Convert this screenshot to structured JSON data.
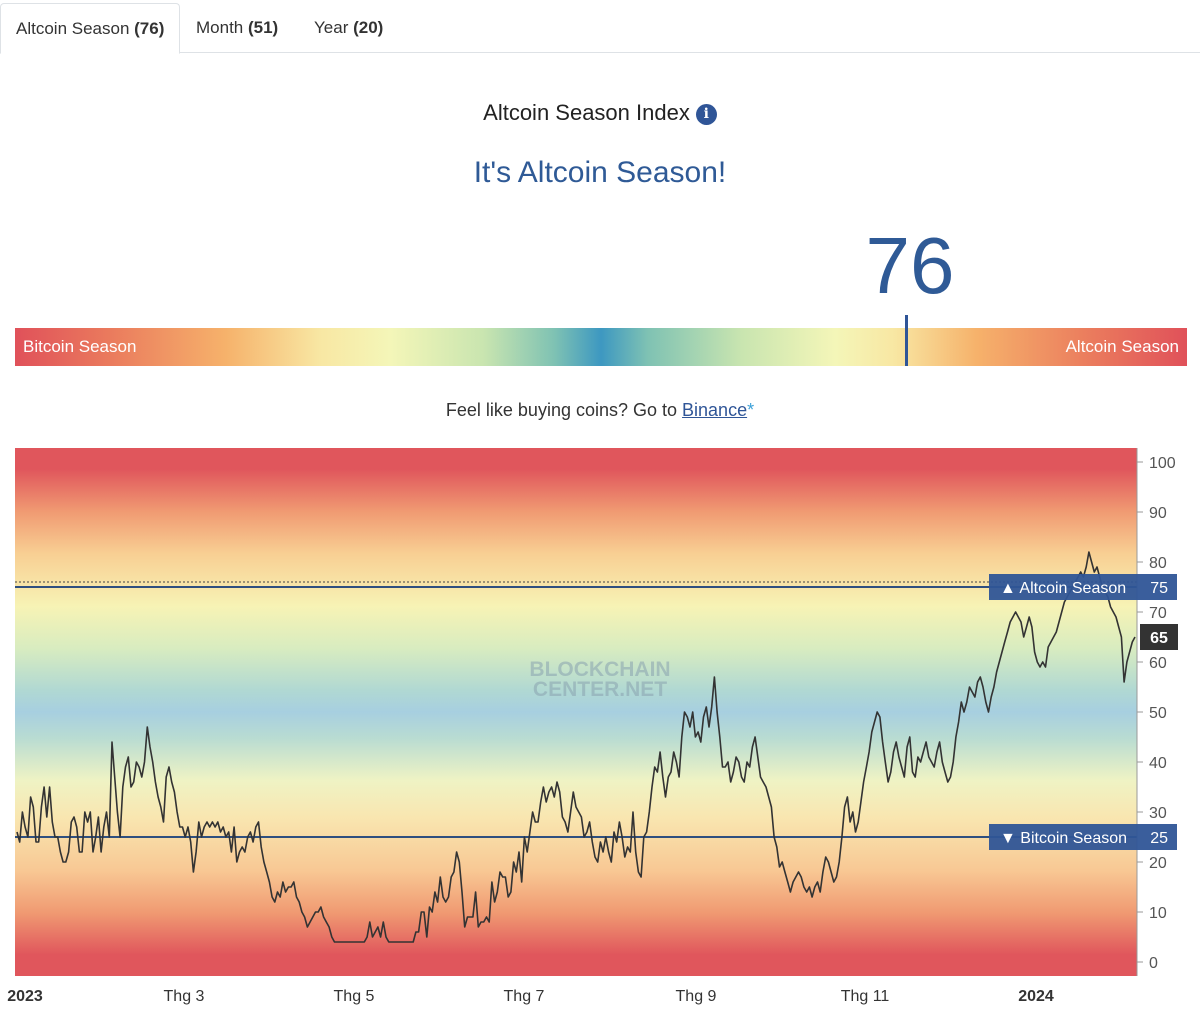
{
  "tabs": [
    {
      "label": "Altcoin Season",
      "count": "(76)"
    },
    {
      "label": "Month",
      "count": "(51)"
    },
    {
      "label": "Year",
      "count": "(20)"
    }
  ],
  "index_title": "Altcoin Season Index",
  "info_icon": "info-icon",
  "season_message": "It's Altcoin Season!",
  "current_value": "76",
  "scale": {
    "left_label": "Bitcoin Season",
    "right_label": "Altcoin Season",
    "marker_value": 76
  },
  "promo": {
    "text": "Feel like buying coins? Go to ",
    "link": "Binance",
    "star": "*"
  },
  "watermark": [
    "BLOCKCHAIN",
    "CENTER.NET"
  ],
  "colors": {
    "accent": "#2f5597",
    "line": "#333333",
    "current_badge": "#333333"
  },
  "chart_data": {
    "type": "line",
    "x_tick_labels": [
      "2023",
      "Thg 3",
      "Thg 5",
      "Thg 7",
      "Thg 9",
      "Thg 11",
      "2024"
    ],
    "y_ticks": [
      0,
      10,
      20,
      30,
      40,
      50,
      60,
      70,
      80,
      90,
      100
    ],
    "ylim": [
      0,
      100
    ],
    "grid": false,
    "reference_lines": [
      {
        "label": "▲ Altcoin Season",
        "value": 75
      },
      {
        "label": "▼ Bitcoin Season",
        "value": 25
      }
    ],
    "current_label": "65",
    "series_values": [
      26,
      24,
      30,
      27,
      25,
      33,
      31,
      24,
      24,
      31,
      35,
      29,
      35,
      28,
      25,
      25,
      22,
      20,
      20,
      22,
      28,
      29,
      27,
      22,
      22,
      30,
      28,
      30,
      22,
      25,
      29,
      22,
      27,
      30,
      25,
      44,
      37,
      30,
      25,
      35,
      39,
      41,
      35,
      36,
      40,
      39,
      37,
      40,
      47,
      43,
      40,
      36,
      33,
      31,
      28,
      37,
      39,
      36,
      34,
      30,
      27,
      27,
      25,
      27,
      24,
      18,
      22,
      28,
      25,
      27,
      28,
      27,
      28,
      27,
      28,
      26,
      27,
      25,
      26,
      22,
      27,
      20,
      22,
      23,
      22,
      25,
      26,
      24,
      27,
      28,
      23,
      20,
      18,
      16,
      13,
      12,
      14,
      13,
      16,
      14,
      15,
      15,
      16,
      13,
      12,
      10,
      9,
      7,
      8,
      9,
      10,
      10,
      11,
      9,
      8,
      7,
      5,
      4,
      4,
      4,
      4,
      4,
      4,
      4,
      4,
      4,
      4,
      4,
      4,
      5,
      8,
      5,
      6,
      7,
      5,
      8,
      5,
      4,
      4,
      4,
      4,
      4,
      4,
      4,
      4,
      4,
      4,
      6,
      6,
      10,
      10,
      5,
      11,
      10,
      14,
      12,
      17,
      13,
      12,
      13,
      17,
      18,
      22,
      20,
      14,
      7,
      9,
      9,
      9,
      14,
      7,
      8,
      8,
      9,
      8,
      16,
      12,
      14,
      18,
      17,
      17,
      13,
      14,
      20,
      18,
      22,
      16,
      25,
      22,
      26,
      30,
      28,
      28,
      32,
      35,
      32,
      34,
      35,
      33,
      36,
      34,
      29,
      28,
      26,
      30,
      34,
      31,
      30,
      29,
      25,
      26,
      28,
      24,
      21,
      20,
      24,
      22,
      25,
      22,
      20,
      26,
      24,
      28,
      25,
      21,
      23,
      22,
      30,
      22,
      18,
      17,
      25,
      26,
      30,
      35,
      39,
      38,
      42,
      37,
      33,
      37,
      38,
      42,
      40,
      37,
      45,
      50,
      49,
      47,
      50,
      45,
      46,
      44,
      49,
      51,
      47,
      51,
      57,
      50,
      45,
      39,
      39,
      40,
      36,
      38,
      41,
      40,
      37,
      36,
      40,
      39,
      43,
      45,
      41,
      37,
      36,
      35,
      33,
      31,
      25,
      23,
      19,
      20,
      18,
      16,
      14,
      16,
      17,
      18,
      17,
      15,
      14,
      15,
      13,
      15,
      16,
      14,
      18,
      21,
      20,
      18,
      16,
      17,
      20,
      25,
      31,
      33,
      28,
      30,
      26,
      28,
      32,
      36,
      39,
      42,
      46,
      48,
      50,
      49,
      44,
      40,
      36,
      38,
      42,
      44,
      41,
      39,
      37,
      43,
      45,
      38,
      37,
      41,
      40,
      42,
      44,
      41,
      40,
      39,
      42,
      44,
      40,
      38,
      36,
      37,
      40,
      45,
      48,
      52,
      50,
      52,
      55,
      54,
      53,
      56,
      57,
      55,
      52,
      50,
      53,
      55,
      58,
      60,
      62,
      64,
      66,
      68,
      69,
      70,
      69,
      68,
      65,
      67,
      69,
      67,
      62,
      60,
      59,
      60,
      59,
      63,
      64,
      65,
      66,
      68,
      70,
      72,
      73,
      74,
      75,
      76,
      77,
      78,
      77,
      79,
      82,
      80,
      78,
      79,
      77,
      75,
      74,
      73,
      71,
      70,
      69,
      67,
      65,
      56,
      60,
      62,
      64,
      65
    ]
  }
}
